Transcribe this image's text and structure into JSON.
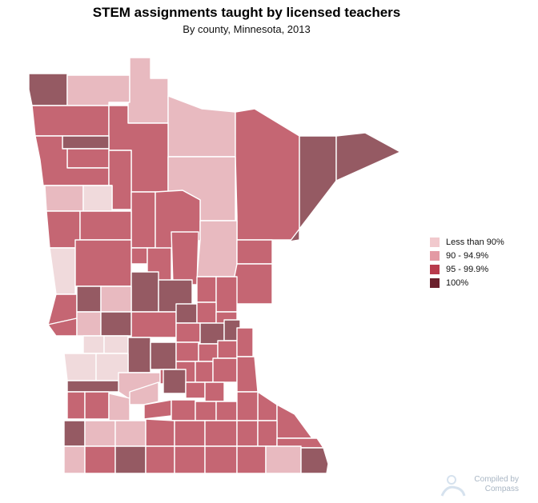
{
  "title": "STEM assignments taught by licensed teachers",
  "subtitle": "By county, Minnesota, 2013",
  "colors": {
    "lt90": "#e8bac0",
    "90_94": "#c56673",
    "95_99": "#a63a4d",
    "100": "#955a63",
    "lightest": "#f0dadc",
    "border": "#ffffff"
  },
  "legend": {
    "items": [
      {
        "label": "Less than 90%",
        "color": "#f1c9cd"
      },
      {
        "label": "90 - 94.9%",
        "color": "#e39aa4"
      },
      {
        "label": "95 - 99.9%",
        "color": "#b83a4c"
      },
      {
        "label": "100%",
        "color": "#6a1f2b"
      }
    ]
  },
  "credit": {
    "line1": "Compiled by",
    "line2": "Compass"
  }
}
